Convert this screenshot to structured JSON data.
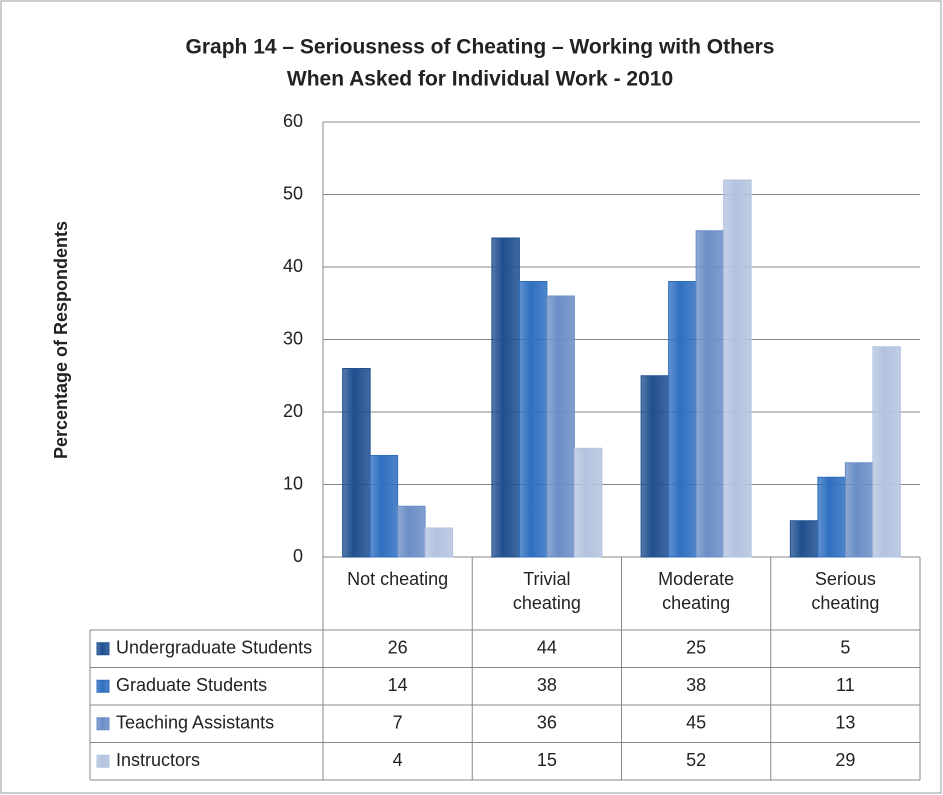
{
  "chart_data": {
    "type": "bar",
    "title": [
      "Graph 14 – Seriousness of Cheating – Working with Others",
      "When Asked for Individual Work - 2010"
    ],
    "y_label": "Percentage of Respondents",
    "categories": [
      "Not cheating",
      "Trivial cheating",
      "Moderate cheating",
      "Serious cheating"
    ],
    "series": [
      {
        "name": "Undergraduate Students",
        "color": "#1f4f8f",
        "values": [
          26,
          44,
          25,
          5
        ]
      },
      {
        "name": "Graduate Students",
        "color": "#2f6fc0",
        "values": [
          14,
          38,
          38,
          11
        ]
      },
      {
        "name": "Teaching Assistants",
        "color": "#6a8ec6",
        "values": [
          7,
          36,
          45,
          13
        ]
      },
      {
        "name": "Instructors",
        "color": "#b3c3df",
        "values": [
          4,
          15,
          52,
          29
        ]
      }
    ],
    "ylim": [
      0,
      60
    ],
    "yticks": [
      0,
      10,
      20,
      30,
      40,
      50,
      60
    ],
    "grid": true
  }
}
